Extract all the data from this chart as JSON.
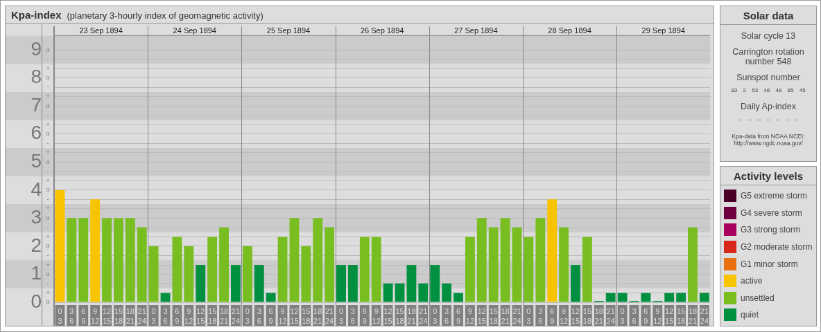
{
  "chart_data": [
    {
      "type": "bar",
      "title": "Kpa-index",
      "subtitle": "(planetary 3-hourly index of geomagnetic activity)",
      "annotations": [
        "23 Sep 1894",
        "24 Sep 1894",
        "25 Sep 1894",
        "26 Sep 1894",
        "27 Sep 1894",
        "28 Sep 1894",
        "29 Sep 1894",
        "o",
        "+",
        "-",
        "o",
        "+",
        "-",
        "o",
        "+",
        "-",
        "o",
        "+",
        "-",
        "o",
        "+",
        "-",
        "o",
        "+",
        "-",
        "o",
        "+",
        "-",
        "o",
        "+",
        "-",
        "o",
        "+",
        "-",
        "o"
      ],
      "categories": [
        "0\n3",
        "3\n6",
        "6\n9",
        "9\n12",
        "12\n15",
        "15\n18",
        "18\n21",
        "21\n24",
        "0\n3",
        "3\n6",
        "6\n9",
        "9\n12",
        "12\n15",
        "15\n18",
        "18\n21",
        "21\n24",
        "0\n3",
        "3\n6",
        "6\n9",
        "9\n12",
        "12\n15",
        "15\n18",
        "18\n21",
        "21\n24",
        "0\n3",
        "3\n6",
        "6\n9",
        "9\n12",
        "12\n15",
        "15\n18",
        "18\n21",
        "21\n24",
        "0\n3",
        "3\n6",
        "6\n9",
        "9\n12",
        "12\n15",
        "15\n18",
        "18\n21",
        "21\n24",
        "0\n3",
        "3\n6",
        "6\n9",
        "9\n12",
        "12\n15",
        "15\n18",
        "18\n21",
        "21\n24",
        "0\n3",
        "3\n6",
        "6\n9",
        "9\n12",
        "12\n15",
        "15\n18",
        "18\n21",
        "21\n24"
      ],
      "stacked": true,
      "legend": "right",
      "legend_title": "Activity levels",
      "grid": "y",
      "ylim": [
        0,
        9.5
      ],
      "yticks": [
        0,
        {
          "value": 0.33,
          "label": null
        },
        {
          "value": 0.67,
          "label": null
        },
        1,
        {
          "value": 1.33,
          "label": null
        },
        {
          "value": 1.67,
          "label": null
        },
        2,
        {
          "value": 2.33,
          "label": null
        },
        {
          "value": 2.67,
          "label": null
        },
        3,
        {
          "value": 3.33,
          "label": null
        },
        {
          "value": 3.67,
          "label": null
        },
        4,
        {
          "value": 4.33,
          "label": null
        },
        {
          "value": 4.67,
          "label": null
        },
        5,
        {
          "value": 5.33,
          "label": null
        },
        {
          "value": 5.67,
          "label": null
        },
        6,
        {
          "value": 6.33,
          "label": null
        },
        {
          "value": 6.67,
          "label": null
        },
        7,
        {
          "value": 7.33,
          "label": null
        },
        {
          "value": 7.67,
          "label": null
        },
        8,
        {
          "value": 8.33,
          "label": null
        },
        {
          "value": 8.67,
          "label": null
        },
        9
      ],
      "bands": [
        {
          "axis": "y",
          "from": 0.5,
          "to": 1.5,
          "color": "#cbcbcb"
        },
        {
          "axis": "y",
          "from": 2.5,
          "to": 3.5,
          "color": "#cbcbcb"
        },
        {
          "axis": "y",
          "from": 4.5,
          "to": 5.5,
          "color": "#cbcbcb"
        },
        {
          "axis": "y",
          "from": 6.5,
          "to": 7.5,
          "color": "#cbcbcb"
        },
        {
          "axis": "y",
          "from": 8.5,
          "to": 9.5,
          "color": "#cbcbcb"
        }
      ],
      "series": [
        {
          "name": "G5 extreme storm",
          "color": "#4a0027",
          "values": [
            null,
            null,
            null,
            null,
            null,
            null,
            null,
            null,
            null,
            null,
            null,
            null,
            null,
            null,
            null,
            null,
            null,
            null,
            null,
            null,
            null,
            null,
            null,
            null,
            null,
            null,
            null,
            null,
            null,
            null,
            null,
            null,
            null,
            null,
            null,
            null,
            null,
            null,
            null,
            null,
            null,
            null,
            null,
            null,
            null,
            null,
            null,
            null,
            null,
            null,
            null,
            null,
            null,
            null,
            null,
            null
          ]
        },
        {
          "name": "G4 severe storm",
          "color": "#6e0040",
          "values": [
            null,
            null,
            null,
            null,
            null,
            null,
            null,
            null,
            null,
            null,
            null,
            null,
            null,
            null,
            null,
            null,
            null,
            null,
            null,
            null,
            null,
            null,
            null,
            null,
            null,
            null,
            null,
            null,
            null,
            null,
            null,
            null,
            null,
            null,
            null,
            null,
            null,
            null,
            null,
            null,
            null,
            null,
            null,
            null,
            null,
            null,
            null,
            null,
            null,
            null,
            null,
            null,
            null,
            null,
            null,
            null
          ]
        },
        {
          "name": "G3 strong storm",
          "color": "#a8005e",
          "values": [
            null,
            null,
            null,
            null,
            null,
            null,
            null,
            null,
            null,
            null,
            null,
            null,
            null,
            null,
            null,
            null,
            null,
            null,
            null,
            null,
            null,
            null,
            null,
            null,
            null,
            null,
            null,
            null,
            null,
            null,
            null,
            null,
            null,
            null,
            null,
            null,
            null,
            null,
            null,
            null,
            null,
            null,
            null,
            null,
            null,
            null,
            null,
            null,
            null,
            null,
            null,
            null,
            null,
            null,
            null,
            null
          ]
        },
        {
          "name": "G2 moderate storm",
          "color": "#d8281c",
          "values": [
            null,
            null,
            null,
            null,
            null,
            null,
            null,
            null,
            null,
            null,
            null,
            null,
            null,
            null,
            null,
            null,
            null,
            null,
            null,
            null,
            null,
            null,
            null,
            null,
            null,
            null,
            null,
            null,
            null,
            null,
            null,
            null,
            null,
            null,
            null,
            null,
            null,
            null,
            null,
            null,
            null,
            null,
            null,
            null,
            null,
            null,
            null,
            null,
            null,
            null,
            null,
            null,
            null,
            null,
            null,
            null
          ]
        },
        {
          "name": "G1 minor storm",
          "color": "#e87010",
          "values": [
            null,
            null,
            null,
            null,
            null,
            null,
            null,
            null,
            null,
            null,
            null,
            null,
            null,
            null,
            null,
            null,
            null,
            null,
            null,
            null,
            null,
            null,
            null,
            null,
            null,
            null,
            null,
            null,
            null,
            null,
            null,
            null,
            null,
            null,
            null,
            null,
            null,
            null,
            null,
            null,
            null,
            null,
            null,
            null,
            null,
            null,
            null,
            null,
            null,
            null,
            null,
            null,
            null,
            null,
            null,
            null
          ]
        },
        {
          "name": "active",
          "color": "#f8c300",
          "values": [
            4,
            null,
            null,
            3.67,
            null,
            null,
            null,
            null,
            null,
            null,
            null,
            null,
            null,
            null,
            null,
            null,
            null,
            null,
            null,
            null,
            null,
            null,
            null,
            null,
            null,
            null,
            null,
            null,
            null,
            null,
            null,
            null,
            null,
            null,
            null,
            null,
            null,
            null,
            null,
            null,
            null,
            null,
            3.67,
            null,
            null,
            null,
            null,
            null,
            null,
            null,
            null,
            null,
            null,
            null,
            null,
            null
          ]
        },
        {
          "name": "unsettled",
          "color": "#78be20",
          "values": [
            null,
            3,
            3,
            null,
            3,
            3,
            3,
            2.67,
            2,
            null,
            2.33,
            2,
            null,
            2.33,
            2.67,
            null,
            2,
            null,
            null,
            2.33,
            3,
            2,
            3,
            2.67,
            null,
            null,
            2.33,
            2.33,
            null,
            null,
            null,
            null,
            null,
            null,
            null,
            2.33,
            3,
            2.67,
            3,
            2.67,
            2.33,
            3,
            null,
            2.67,
            null,
            2.33,
            null,
            null,
            null,
            null,
            null,
            null,
            null,
            null,
            2.67,
            null
          ]
        },
        {
          "name": "quiet",
          "color": "#009040",
          "values": [
            null,
            null,
            null,
            null,
            null,
            null,
            null,
            null,
            null,
            0.33,
            null,
            null,
            1.33,
            null,
            null,
            1.33,
            null,
            1.33,
            0.33,
            null,
            null,
            null,
            null,
            null,
            1.33,
            1.33,
            null,
            null,
            0.67,
            0.67,
            1.33,
            0.67,
            1.33,
            0.67,
            0.33,
            null,
            null,
            null,
            null,
            null,
            null,
            null,
            null,
            null,
            1.33,
            null,
            0,
            0.33,
            0.33,
            0,
            0.33,
            0,
            0.33,
            0.33,
            null,
            0.33
          ]
        }
      ]
    },
    {
      "type": "other",
      "title": "Solar data",
      "annotations": [
        "Solar cycle 13",
        "Carrington rotation number 548",
        "Sunspot number",
        "83 2 53 48 48 85 45",
        "Daily Ap-index",
        "-- -- -- -- -- -- --",
        "Kpa-data from NOAA NCEI: http://www.ngdc.noaa.gov/"
      ]
    }
  ]
}
